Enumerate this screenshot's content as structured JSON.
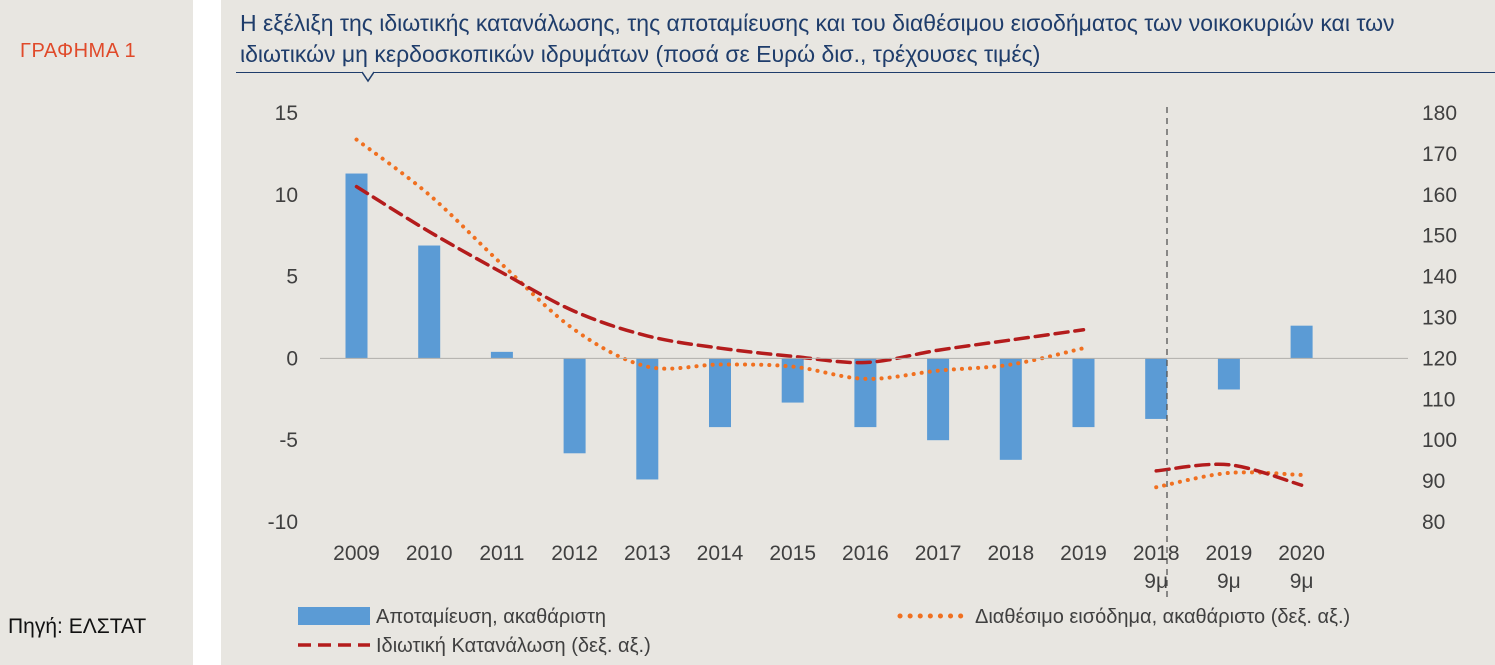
{
  "figure_label": "ΓΡΑΦΗΜΑ 1",
  "source": "Πηγή: ΕΛΣΤΑΤ",
  "colors": {
    "bars": "#5b9bd5",
    "income_line": "#f07020",
    "consumption_line": "#b41c1c",
    "label_red": "#e04a2a",
    "title_blue": "#1f3d6b"
  },
  "chart_data": {
    "type": "bar",
    "title": "Η εξέλιξη της ιδιωτικής κατανάλωσης, της αποταμίευσης και του διαθέσιμου εισοδήματος των νοικοκυριών και των ιδιωτικών μη κερδοσκοπικών ιδρυμάτων (ποσά σε Ευρώ δισ., τρέχουσες τιμές)",
    "categories": [
      "2009",
      "2010",
      "2011",
      "2012",
      "2013",
      "2014",
      "2015",
      "2016",
      "2017",
      "2018",
      "2019",
      "2018\n9μ",
      "2019\n9μ",
      "2020\n9μ"
    ],
    "left_axis": {
      "ylim": [
        -10,
        15
      ],
      "ticks": [
        "-10",
        "-5",
        "0",
        "5",
        "10",
        "15"
      ]
    },
    "right_axis": {
      "ylim": [
        80,
        180
      ],
      "ticks": [
        "80",
        "90",
        "100",
        "110",
        "120",
        "130",
        "140",
        "150",
        "160",
        "170",
        "180"
      ]
    },
    "series": [
      {
        "name": "Αποταμίευση, ακαθάριστη",
        "kind": "bar",
        "axis": "left",
        "values": [
          11.3,
          6.9,
          0.4,
          -5.8,
          -7.4,
          -4.2,
          -2.7,
          -4.2,
          -5.0,
          -6.2,
          -4.2,
          -3.7,
          -1.9,
          2.0
        ]
      },
      {
        "name": "Διαθέσιμο εισόδημα, ακαθάριστο (δεξ. αξ.)",
        "kind": "line",
        "style": "dotted",
        "axis": "right",
        "segments": [
          {
            "start": 0,
            "values": [
              173.5,
              160.0,
              143.0,
              127.0,
              118.0,
              118.5,
              118.0,
              115.0,
              117.0,
              118.5,
              122.5
            ]
          },
          {
            "start": 11,
            "values": [
              88.5,
              92.0,
              91.5
            ]
          }
        ]
      },
      {
        "name": "Ιδιωτική Κατανάλωση  (δεξ. αξ.)",
        "kind": "line",
        "style": "dashed",
        "axis": "right",
        "segments": [
          {
            "start": 0,
            "values": [
              162.0,
              151.0,
              141.0,
              131.5,
              125.5,
              122.5,
              120.5,
              119.0,
              122.0,
              124.5,
              127.0
            ]
          },
          {
            "start": 11,
            "values": [
              92.5,
              94.0,
              89.0
            ]
          }
        ]
      }
    ],
    "legend": [
      "Αποταμίευση, ακαθάριστη",
      "Διαθέσιμο εισόδημα, ακαθάριστο (δεξ. αξ.)",
      "Ιδιωτική Κατανάλωση  (δεξ. αξ.)"
    ]
  }
}
